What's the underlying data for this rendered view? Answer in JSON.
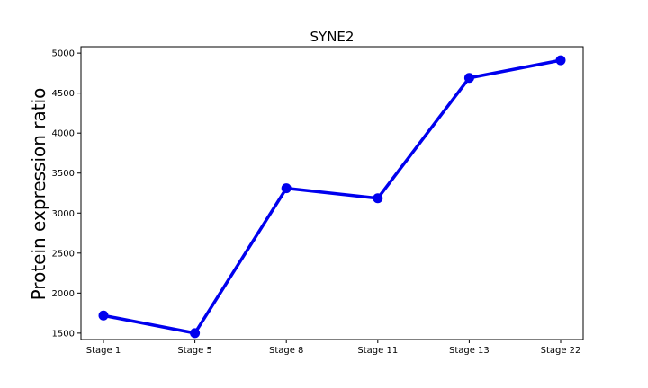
{
  "chart_data": {
    "type": "line",
    "title": "SYNE2",
    "xlabel": "",
    "ylabel": "Protein expression ratio",
    "categories": [
      "Stage 1",
      "Stage 5",
      "Stage 8",
      "Stage 11",
      "Stage 13",
      "Stage 22"
    ],
    "series": [
      {
        "values": [
          1720,
          1500,
          3310,
          3185,
          4690,
          4910
        ],
        "color": "#0000ee"
      }
    ],
    "ylim": [
      1420,
      5080
    ],
    "yticks": [
      1500,
      2000,
      2500,
      3000,
      3500,
      4000,
      4500,
      5000
    ],
    "grid": false,
    "legend": "none"
  }
}
